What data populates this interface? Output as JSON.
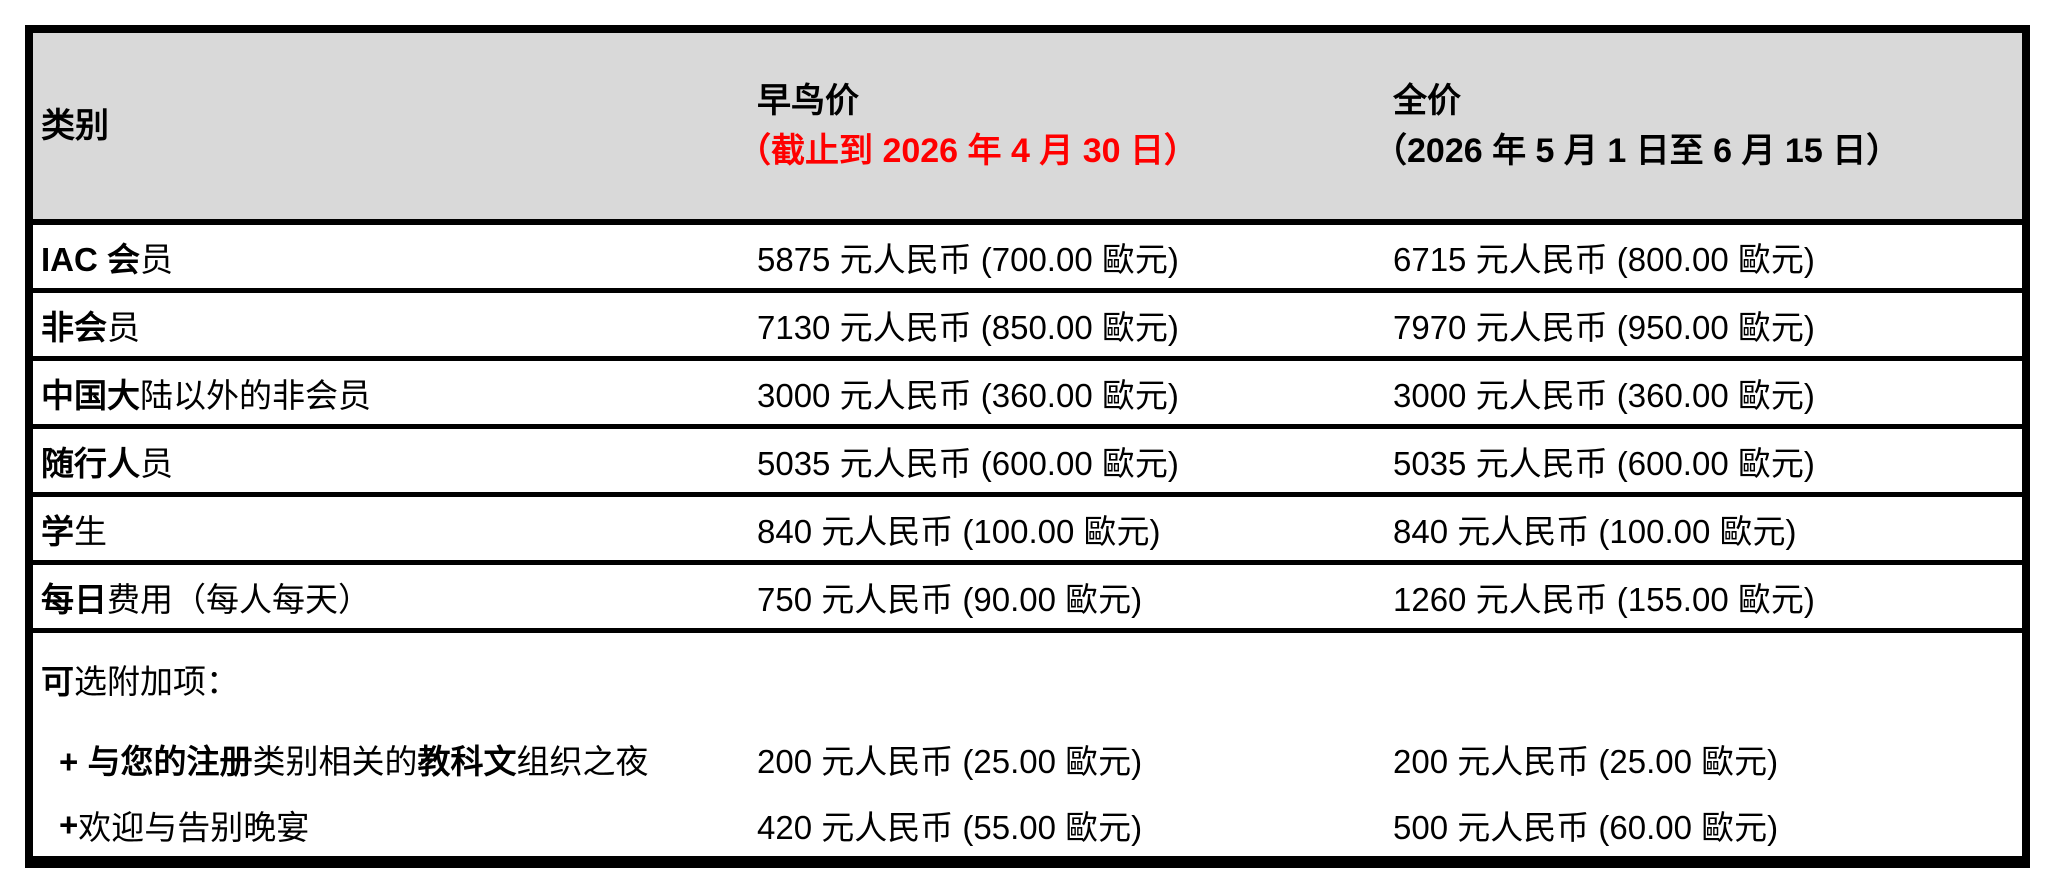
{
  "header": {
    "category": "类别",
    "early_bird": {
      "title": "早鸟价",
      "deadline": "（截止到 2026 年 4 月 30 日）"
    },
    "full_price": {
      "title": "全价",
      "period": "（2026 年 5 月 1 日至 6 月 15 日）"
    }
  },
  "rows": [
    {
      "cat_bold": "IAC 会",
      "cat_rest": "员",
      "early": "5875 元人民币 (700.00 歐元)",
      "full": "6715 元人民币 (800.00 歐元)"
    },
    {
      "cat_bold": "非会",
      "cat_rest": "员",
      "early": "7130 元人民币 (850.00 歐元)",
      "full": "7970 元人民币 (950.00 歐元)"
    },
    {
      "cat_bold": "中国大",
      "cat_rest": "陆以外的非会员",
      "early": "3000 元人民币 (360.00 歐元)",
      "full": "3000 元人民币 (360.00 歐元)"
    },
    {
      "cat_bold": "随行人",
      "cat_rest": "员",
      "early": "5035 元人民币 (600.00 歐元)",
      "full": "5035 元人民币 (600.00 歐元)"
    },
    {
      "cat_bold": "学",
      "cat_rest": "生",
      "early": "840 元人民币 (100.00 歐元)",
      "full": "840 元人民币 (100.00 歐元)"
    },
    {
      "cat_bold": "每日",
      "cat_rest": "费用（每人每天）",
      "early": "750 元人民币 (90.00 歐元)",
      "full": "1260 元人民币 (155.00 歐元)"
    }
  ],
  "addons": {
    "title_bold": "可",
    "title_rest": "选附加项：",
    "items": [
      {
        "label_b1": "+ 与您的注册",
        "label_r1": "类别相关的 ",
        "label_b2": "教科文",
        "label_r2": "组织之夜",
        "early": "200 元人民币 (25.00 歐元)",
        "full": "200 元人民币 (25.00 歐元)"
      },
      {
        "label_b1": "+",
        "label_r1": " 欢迎与告别晚宴",
        "early": "420 元人民币 (55.00 歐元)",
        "full": "500 元人民币 (60.00 歐元)"
      }
    ]
  },
  "colors": {
    "header_bg": "#d9d9d9",
    "deadline_red": "#ff0000",
    "border": "#000000"
  }
}
